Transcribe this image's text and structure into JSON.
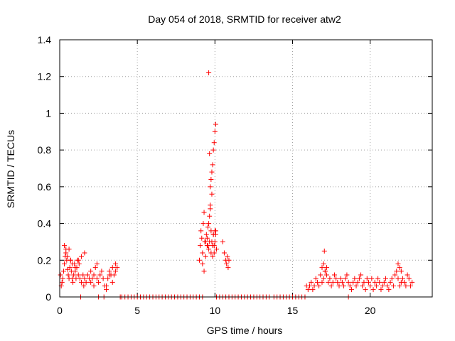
{
  "chart_data": {
    "type": "scatter",
    "title": "Day 054 of 2018, SRMTID for receiver atw2",
    "xlabel": "GPS time / hours",
    "ylabel": "SRMTID / TECUs",
    "xlim": [
      0,
      24
    ],
    "ylim": [
      0,
      1.4
    ],
    "xticks": [
      0,
      5,
      10,
      15,
      20
    ],
    "yticks": [
      0,
      0.2,
      0.4,
      0.6,
      0.8,
      1,
      1.2,
      1.4
    ],
    "xtick_labels": [
      "0",
      "5",
      "10",
      "15",
      "20"
    ],
    "ytick_labels": [
      "0",
      "0.2",
      "0.4",
      "0.6",
      "0.8",
      "1",
      "1.2",
      "1.4"
    ],
    "grid": true,
    "marker": "+",
    "color": "#ff0000",
    "series": [
      {
        "name": "atw2",
        "x": [
          0.05,
          0.1,
          0.15,
          0.2,
          0.25,
          0.3,
          0.35,
          0.4,
          0.45,
          0.5,
          0.55,
          0.6,
          0.65,
          0.7,
          0.75,
          0.8,
          0.85,
          0.9,
          0.95,
          1.0,
          1.05,
          1.1,
          1.15,
          1.2,
          1.25,
          1.3,
          1.4,
          1.5,
          1.55,
          1.6,
          1.7,
          1.8,
          1.9,
          2.0,
          2.1,
          2.2,
          2.3,
          2.4,
          2.5,
          2.6,
          2.7,
          2.8,
          2.9,
          3.0,
          3.1,
          3.2,
          3.3,
          3.4,
          3.5,
          3.6,
          3.7,
          0.3,
          0.4,
          0.5,
          0.6,
          0.7,
          0.8,
          1.0,
          1.2,
          1.4,
          1.6,
          2.0,
          2.2,
          2.4,
          3.0,
          3.2,
          3.4,
          3.6,
          1.35,
          2.5,
          2.85,
          3.9,
          4.0,
          4.2,
          4.4,
          4.6,
          4.8,
          5.0,
          5.2,
          5.4,
          5.6,
          5.8,
          6.0,
          6.2,
          6.4,
          6.6,
          6.8,
          7.0,
          7.2,
          7.4,
          7.6,
          7.8,
          8.0,
          8.2,
          8.4,
          8.6,
          8.8,
          9.0,
          9.2,
          9.0,
          9.05,
          9.1,
          9.15,
          9.2,
          9.25,
          9.3,
          9.35,
          9.4,
          9.45,
          9.5,
          9.55,
          9.6,
          9.65,
          9.7,
          9.75,
          9.8,
          9.85,
          9.9,
          9.95,
          10.0,
          10.05,
          10.1,
          9.2,
          9.3,
          9.4,
          9.5,
          9.6,
          9.7,
          9.8,
          9.9,
          10.0,
          9.55,
          9.65,
          9.75,
          9.85,
          9.95,
          10.05,
          9.6,
          9.65,
          9.7,
          9.75,
          9.8,
          9.85,
          9.9,
          9.95,
          10.0,
          10.05,
          10.5,
          10.6,
          10.7,
          10.75,
          10.8,
          10.85,
          10.9,
          10.1,
          10.3,
          10.5,
          10.7,
          10.9,
          11.1,
          11.3,
          11.5,
          11.7,
          11.9,
          12.1,
          12.3,
          12.5,
          12.7,
          12.9,
          13.1,
          13.3,
          13.5,
          13.8,
          14.0,
          14.2,
          14.4,
          14.6,
          14.8,
          15.0,
          15.2,
          15.4,
          15.6,
          15.8,
          15.9,
          16.0,
          16.1,
          16.2,
          16.3,
          16.4,
          16.5,
          16.6,
          16.7,
          16.8,
          16.9,
          17.0,
          17.1,
          17.2,
          17.3,
          17.4,
          17.5,
          17.6,
          17.7,
          17.8,
          17.9,
          18.0,
          18.1,
          18.2,
          18.3,
          18.4,
          18.5,
          18.6,
          18.7,
          18.8,
          18.9,
          19.0,
          19.1,
          19.2,
          19.3,
          19.4,
          19.5,
          19.6,
          19.7,
          19.8,
          19.9,
          20.0,
          20.1,
          20.2,
          20.3,
          20.4,
          20.5,
          20.6,
          20.7,
          20.8,
          20.9,
          21.0,
          21.1,
          21.2,
          21.3,
          21.4,
          21.5,
          21.6,
          21.7,
          21.8,
          21.9,
          22.0,
          22.1,
          22.2,
          22.3,
          22.4,
          22.5,
          22.6,
          22.7,
          16.9,
          17.0,
          17.05,
          17.1,
          17.2,
          21.8,
          21.9,
          22.0,
          18.6
        ],
        "y": [
          0.12,
          0.06,
          0.08,
          0.1,
          0.14,
          0.18,
          0.22,
          0.26,
          0.2,
          0.15,
          0.12,
          0.1,
          0.16,
          0.2,
          0.14,
          0.1,
          0.08,
          0.12,
          0.18,
          0.14,
          0.1,
          0.16,
          0.2,
          0.12,
          0.18,
          0.1,
          0.08,
          0.12,
          0.06,
          0.1,
          0.08,
          0.12,
          0.1,
          0.14,
          0.1,
          0.12,
          0.16,
          0.1,
          0.08,
          0.12,
          0.14,
          0.1,
          0.06,
          0.04,
          0.1,
          0.14,
          0.12,
          0.16,
          0.12,
          0.14,
          0.16,
          0.28,
          0.24,
          0.22,
          0.26,
          0.2,
          0.18,
          0.16,
          0.2,
          0.22,
          0.24,
          0.08,
          0.06,
          0.18,
          0.06,
          0.12,
          0.08,
          0.18,
          0.0,
          0.0,
          0.0,
          0.0,
          0.0,
          0.0,
          0.0,
          0.0,
          0.0,
          0.0,
          0.0,
          0.0,
          0.0,
          0.0,
          0.0,
          0.0,
          0.0,
          0.0,
          0.0,
          0.0,
          0.0,
          0.0,
          0.0,
          0.0,
          0.0,
          0.0,
          0.0,
          0.0,
          0.0,
          0.0,
          0.0,
          0.2,
          0.28,
          0.36,
          0.32,
          0.24,
          0.4,
          0.46,
          0.3,
          0.22,
          0.34,
          0.28,
          0.38,
          0.26,
          0.44,
          0.5,
          0.36,
          0.3,
          0.28,
          0.34,
          0.24,
          0.3,
          0.36,
          0.26,
          0.18,
          0.14,
          0.3,
          0.32,
          0.4,
          0.48,
          0.56,
          0.34,
          0.36,
          0.28,
          0.3,
          0.24,
          0.22,
          0.28,
          0.34,
          1.22,
          0.78,
          0.6,
          0.64,
          0.68,
          0.72,
          0.8,
          0.84,
          0.9,
          0.94,
          0.3,
          0.24,
          0.2,
          0.18,
          0.22,
          0.16,
          0.2,
          0.0,
          0.0,
          0.0,
          0.0,
          0.0,
          0.0,
          0.0,
          0.0,
          0.0,
          0.0,
          0.0,
          0.0,
          0.0,
          0.0,
          0.0,
          0.0,
          0.0,
          0.0,
          0.0,
          0.0,
          0.0,
          0.0,
          0.0,
          0.0,
          0.0,
          0.0,
          0.0,
          0.0,
          0.0,
          0.06,
          0.04,
          0.06,
          0.08,
          0.04,
          0.06,
          0.1,
          0.08,
          0.06,
          0.12,
          0.08,
          0.1,
          0.14,
          0.12,
          0.08,
          0.1,
          0.06,
          0.08,
          0.12,
          0.1,
          0.08,
          0.06,
          0.1,
          0.08,
          0.06,
          0.1,
          0.12,
          0.08,
          0.06,
          0.04,
          0.08,
          0.1,
          0.06,
          0.08,
          0.1,
          0.12,
          0.06,
          0.08,
          0.04,
          0.1,
          0.08,
          0.06,
          0.1,
          0.04,
          0.08,
          0.06,
          0.1,
          0.08,
          0.04,
          0.06,
          0.08,
          0.1,
          0.06,
          0.04,
          0.08,
          0.1,
          0.06,
          0.12,
          0.14,
          0.1,
          0.06,
          0.08,
          0.1,
          0.08,
          0.06,
          0.12,
          0.1,
          0.06,
          0.08,
          0.16,
          0.18,
          0.25,
          0.14,
          0.16,
          0.18,
          0.16,
          0.14,
          0.0
        ]
      }
    ]
  }
}
